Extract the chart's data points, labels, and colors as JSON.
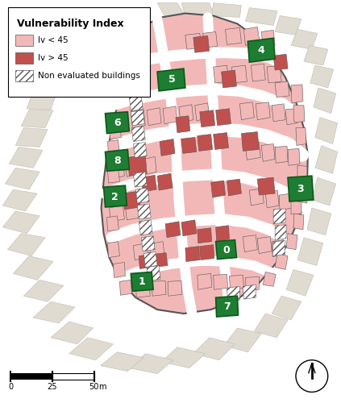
{
  "background_color": "#f0ece4",
  "legend_title": "Vulnerability Index",
  "legend_items": [
    {
      "label": "Iv < 45",
      "color": "#f2b8b8",
      "hatch": null
    },
    {
      "label": "Iv > 45",
      "color": "#c0504d",
      "hatch": null
    },
    {
      "label": "Non evaluated buildings",
      "color": "#ffffff",
      "hatch": "////"
    }
  ],
  "gathering_color": "#1e7d32",
  "pink_light": "#f2b8b8",
  "pink_dark": "#c0504d",
  "outline_color": "#555555",
  "road_color": "#ffffff",
  "outside_fill": "#e0dbd0",
  "outside_edge": "#c0bbb0"
}
